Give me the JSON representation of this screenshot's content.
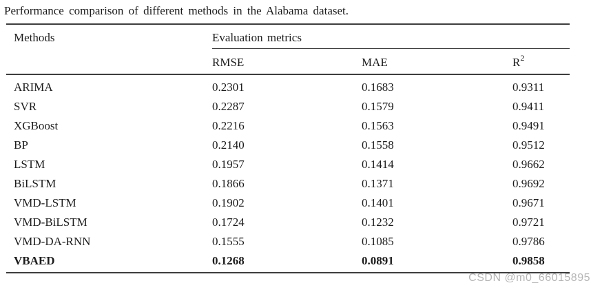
{
  "caption": "Performance comparison of different methods in the Alabama dataset.",
  "table": {
    "methods_header": "Methods",
    "group_header": "Evaluation metrics",
    "col_rmse": "RMSE",
    "col_mae": "MAE",
    "col_r2_base": "R",
    "col_r2_sup": "2",
    "rows": [
      {
        "method": "ARIMA",
        "rmse": "0.2301",
        "mae": "0.1683",
        "r2": "0.9311"
      },
      {
        "method": "SVR",
        "rmse": "0.2287",
        "mae": "0.1579",
        "r2": "0.9411"
      },
      {
        "method": "XGBoost",
        "rmse": "0.2216",
        "mae": "0.1563",
        "r2": "0.9491"
      },
      {
        "method": "BP",
        "rmse": "0.2140",
        "mae": "0.1558",
        "r2": "0.9512"
      },
      {
        "method": "LSTM",
        "rmse": "0.1957",
        "mae": "0.1414",
        "r2": "0.9662"
      },
      {
        "method": "BiLSTM",
        "rmse": "0.1866",
        "mae": "0.1371",
        "r2": "0.9692"
      },
      {
        "method": "VMD-LSTM",
        "rmse": "0.1902",
        "mae": "0.1401",
        "r2": "0.9671"
      },
      {
        "method": "VMD-BiLSTM",
        "rmse": "0.1724",
        "mae": "0.1232",
        "r2": "0.9721"
      },
      {
        "method": "VMD-DA-RNN",
        "rmse": "0.1555",
        "mae": "0.1085",
        "r2": "0.9786"
      },
      {
        "method": "VBAED",
        "rmse": "0.1268",
        "mae": "0.0891",
        "r2": "0.9858"
      }
    ],
    "bold_row_method": "VBAED"
  },
  "watermark": "CSDN @m0_66015895",
  "colors": {
    "text": "#1c1c1c",
    "rule": "#3d3d3d",
    "watermark": "#b5b5b5",
    "background": "#ffffff"
  }
}
